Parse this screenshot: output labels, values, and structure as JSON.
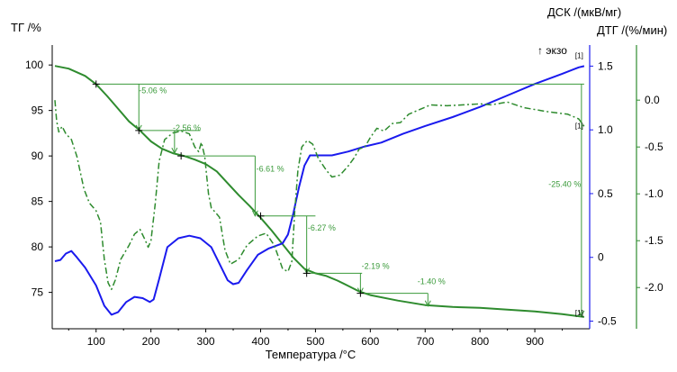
{
  "chart_data": {
    "type": "line",
    "title": "",
    "xlabel": "Температура /°C",
    "ylabel_left": "ТГ /%",
    "ylabel_right_dsc": "ДСК /(мкВ/мг)",
    "ylabel_right_dtg": "ДТГ /(%/мин)",
    "exo_label": "↑ экзо",
    "xlim": [
      20,
      1000
    ],
    "x_ticks": [
      100,
      200,
      300,
      400,
      500,
      600,
      700,
      800,
      900
    ],
    "tg_ylim": [
      71,
      101.7
    ],
    "tg_ticks": [
      100,
      95,
      90,
      85,
      80,
      75
    ],
    "dsc_ylim": [
      -0.56,
      1.63
    ],
    "dsc_ticks": [
      1.5,
      1.0,
      0.5,
      0,
      -0.5
    ],
    "dsc_tick_labels": [
      "1.5",
      "1.0",
      "0.5",
      "0",
      "-0.5"
    ],
    "dtg_ylim": [
      -2.44,
      0.54
    ],
    "dtg_ticks": [
      0.0,
      -0.5,
      -1.0,
      -1.5,
      -2.0
    ],
    "dtg_tick_labels": [
      "0.0",
      "-0.5",
      "-1.0",
      "-1.5",
      "-2.0"
    ],
    "colors": {
      "tg": "#2e8b2e",
      "dsc": "#1a1aee",
      "dtg": "#2e8b2e",
      "annotation": "#3a9a3a",
      "axis_green": "#2e8b2e"
    },
    "series": [
      {
        "name": "ТГ",
        "axis": "tg",
        "style": "solid",
        "points": [
          [
            25,
            99.9
          ],
          [
            50,
            99.6
          ],
          [
            80,
            98.8
          ],
          [
            100,
            97.9
          ],
          [
            120,
            96.6
          ],
          [
            140,
            95.2
          ],
          [
            160,
            93.8
          ],
          [
            180,
            92.8
          ],
          [
            200,
            91.6
          ],
          [
            220,
            90.8
          ],
          [
            240,
            90.3
          ],
          [
            260,
            90.0
          ],
          [
            280,
            89.6
          ],
          [
            300,
            89.1
          ],
          [
            320,
            88.3
          ],
          [
            340,
            87.0
          ],
          [
            360,
            85.7
          ],
          [
            380,
            84.5
          ],
          [
            400,
            83.2
          ],
          [
            420,
            81.8
          ],
          [
            440,
            80.3
          ],
          [
            460,
            78.8
          ],
          [
            480,
            77.6
          ],
          [
            500,
            77.1
          ],
          [
            520,
            76.8
          ],
          [
            540,
            76.3
          ],
          [
            560,
            75.7
          ],
          [
            580,
            75.1
          ],
          [
            600,
            74.7
          ],
          [
            650,
            74.1
          ],
          [
            700,
            73.6
          ],
          [
            750,
            73.4
          ],
          [
            800,
            73.3
          ],
          [
            850,
            73.1
          ],
          [
            900,
            72.9
          ],
          [
            950,
            72.6
          ],
          [
            990,
            72.3
          ]
        ]
      },
      {
        "name": "ДСК",
        "axis": "dsc",
        "style": "solid",
        "points": [
          [
            25,
            -0.03
          ],
          [
            35,
            -0.02
          ],
          [
            45,
            0.03
          ],
          [
            55,
            0.05
          ],
          [
            65,
            0.0
          ],
          [
            80,
            -0.08
          ],
          [
            100,
            -0.22
          ],
          [
            115,
            -0.38
          ],
          [
            128,
            -0.45
          ],
          [
            140,
            -0.43
          ],
          [
            155,
            -0.35
          ],
          [
            170,
            -0.31
          ],
          [
            185,
            -0.32
          ],
          [
            198,
            -0.35
          ],
          [
            205,
            -0.33
          ],
          [
            215,
            -0.17
          ],
          [
            230,
            0.08
          ],
          [
            250,
            0.15
          ],
          [
            270,
            0.17
          ],
          [
            290,
            0.15
          ],
          [
            310,
            0.08
          ],
          [
            325,
            -0.05
          ],
          [
            340,
            -0.18
          ],
          [
            350,
            -0.21
          ],
          [
            360,
            -0.2
          ],
          [
            375,
            -0.1
          ],
          [
            395,
            0.02
          ],
          [
            415,
            0.07
          ],
          [
            440,
            0.11
          ],
          [
            450,
            0.18
          ],
          [
            460,
            0.35
          ],
          [
            470,
            0.55
          ],
          [
            480,
            0.72
          ],
          [
            490,
            0.8
          ],
          [
            510,
            0.8
          ],
          [
            530,
            0.8
          ],
          [
            560,
            0.83
          ],
          [
            590,
            0.87
          ],
          [
            620,
            0.9
          ],
          [
            660,
            0.97
          ],
          [
            700,
            1.03
          ],
          [
            750,
            1.1
          ],
          [
            800,
            1.18
          ],
          [
            850,
            1.27
          ],
          [
            900,
            1.36
          ],
          [
            950,
            1.44
          ],
          [
            980,
            1.49
          ],
          [
            990,
            1.5
          ]
        ]
      },
      {
        "name": "ДТГ",
        "axis": "dtg",
        "style": "dashdot",
        "points": [
          [
            25,
            0.0
          ],
          [
            28,
            -0.22
          ],
          [
            32,
            -0.34
          ],
          [
            38,
            -0.28
          ],
          [
            45,
            -0.36
          ],
          [
            55,
            -0.42
          ],
          [
            65,
            -0.6
          ],
          [
            78,
            -0.95
          ],
          [
            88,
            -1.1
          ],
          [
            100,
            -1.18
          ],
          [
            108,
            -1.3
          ],
          [
            115,
            -1.7
          ],
          [
            122,
            -1.95
          ],
          [
            128,
            -2.02
          ],
          [
            135,
            -1.92
          ],
          [
            145,
            -1.7
          ],
          [
            160,
            -1.55
          ],
          [
            170,
            -1.43
          ],
          [
            180,
            -1.38
          ],
          [
            190,
            -1.5
          ],
          [
            195,
            -1.57
          ],
          [
            200,
            -1.5
          ],
          [
            208,
            -1.1
          ],
          [
            215,
            -0.65
          ],
          [
            225,
            -0.42
          ],
          [
            240,
            -0.35
          ],
          [
            255,
            -0.33
          ],
          [
            270,
            -0.36
          ],
          [
            280,
            -0.5
          ],
          [
            287,
            -0.55
          ],
          [
            292,
            -0.45
          ],
          [
            298,
            -0.6
          ],
          [
            305,
            -1.0
          ],
          [
            310,
            -1.15
          ],
          [
            318,
            -1.2
          ],
          [
            325,
            -1.25
          ],
          [
            335,
            -1.6
          ],
          [
            345,
            -1.75
          ],
          [
            360,
            -1.7
          ],
          [
            375,
            -1.55
          ],
          [
            395,
            -1.45
          ],
          [
            410,
            -1.42
          ],
          [
            425,
            -1.55
          ],
          [
            440,
            -1.8
          ],
          [
            450,
            -1.83
          ],
          [
            457,
            -1.72
          ],
          [
            462,
            -1.2
          ],
          [
            468,
            -0.75
          ],
          [
            475,
            -0.5
          ],
          [
            485,
            -0.43
          ],
          [
            495,
            -0.47
          ],
          [
            505,
            -0.62
          ],
          [
            520,
            -0.75
          ],
          [
            530,
            -0.82
          ],
          [
            545,
            -0.8
          ],
          [
            560,
            -0.7
          ],
          [
            570,
            -0.62
          ],
          [
            580,
            -0.52
          ],
          [
            590,
            -0.5
          ],
          [
            600,
            -0.4
          ],
          [
            612,
            -0.3
          ],
          [
            625,
            -0.33
          ],
          [
            640,
            -0.25
          ],
          [
            655,
            -0.24
          ],
          [
            670,
            -0.15
          ],
          [
            690,
            -0.1
          ],
          [
            710,
            -0.05
          ],
          [
            740,
            -0.06
          ],
          [
            770,
            -0.05
          ],
          [
            800,
            -0.04
          ],
          [
            820,
            -0.05
          ],
          [
            850,
            -0.02
          ],
          [
            880,
            -0.08
          ],
          [
            920,
            -0.12
          ],
          [
            960,
            -0.15
          ],
          [
            980,
            -0.2
          ],
          [
            990,
            -0.28
          ]
        ]
      }
    ],
    "annotations": [
      {
        "text": "-5.06 %",
        "axis": "tg",
        "y_top": 97.9,
        "y_bottom": 92.8,
        "x_line_end": 990,
        "x_start": 100,
        "x_vert": 178,
        "text_x": 178,
        "text_y": 96.9
      },
      {
        "text": "-2.56 %",
        "axis": "tg",
        "y_top": 92.8,
        "y_bottom": 90.3,
        "x_line_end": 290,
        "x_start": 178,
        "x_vert": 243,
        "text_x": 240,
        "text_y": 92.8
      },
      {
        "text": "-6.61 %",
        "axis": "tg",
        "y_top": 90.0,
        "y_bottom": 83.4,
        "x_line_end": 390,
        "x_start": 255,
        "x_vert": 390,
        "text_x": 392,
        "text_y": 88.3
      },
      {
        "text": "-6.27 %",
        "axis": "tg",
        "y_top": 83.4,
        "y_bottom": 77.1,
        "x_line_end": 500,
        "x_start": 400,
        "x_vert": 484,
        "text_x": 486,
        "text_y": 81.8
      },
      {
        "text": "-2.19 %",
        "axis": "tg",
        "y_top": 77.1,
        "y_bottom": 74.9,
        "x_line_end": 585,
        "x_start": 484,
        "x_vert": 582,
        "text_x": 584,
        "text_y": 77.6
      },
      {
        "text": "-1.40 %",
        "axis": "tg",
        "y_top": 74.9,
        "y_bottom": 73.5,
        "x_line_end": 705,
        "x_start": 582,
        "x_vert": 705,
        "text_x": 686,
        "text_y": 75.9
      },
      {
        "text": "-25.40 %",
        "axis": "tg",
        "y_top": 97.9,
        "y_bottom": 72.4,
        "x_line_end": 985,
        "x_start": 985,
        "x_vert": 985,
        "text_x": 925,
        "text_y": 86.6
      }
    ],
    "markers": [
      "[1]",
      "[1]",
      "[1]"
    ]
  }
}
